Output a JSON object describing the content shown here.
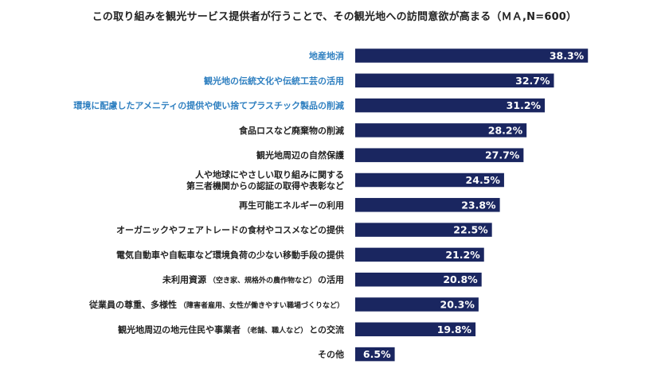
{
  "chart_data": {
    "type": "bar",
    "orientation": "horizontal",
    "title": "この取り組みを観光サービス提供者が行うことで、その観光地への訪問意欲が高まる（ＭＡ,N=600）",
    "categories": [
      {
        "label": "地産地消",
        "highlight": true
      },
      {
        "label": "観光地の伝統文化や伝統工芸の活用",
        "highlight": true
      },
      {
        "label": "環境に配慮したアメニティの提供や使い捨てプラスチック製品の削減",
        "highlight": true
      },
      {
        "label": "食品ロスなど廃棄物の削減"
      },
      {
        "label": "観光地周辺の自然保護"
      },
      {
        "lines": [
          "人や地球にやさしい取り組みに関する",
          "第三者機関からの認証の取得や表彰など"
        ]
      },
      {
        "label": "再生可能エネルギーの利用"
      },
      {
        "label": "オーガニックやフェアトレードの食材やコスメなどの提供"
      },
      {
        "label": "電気自動車や自転車など環境負荷の少ない移動手段の提供"
      },
      {
        "label": "未利用資源",
        "note": "（空き家、規格外の農作物など）",
        "suffix": "の活用"
      },
      {
        "label": "従業員の尊重、多様性",
        "note": "（障害者雇用、女性が働きやすい職場づくりなど）",
        "suffix": ""
      },
      {
        "label": "観光地周辺の地元住民や事業者",
        "note": "（老舗、職人など）",
        "suffix": "との交流"
      },
      {
        "label": "その他"
      }
    ],
    "values": [
      38.3,
      32.7,
      31.2,
      28.2,
      27.7,
      24.5,
      23.8,
      22.5,
      21.2,
      20.8,
      20.3,
      19.8,
      6.5
    ],
    "value_labels": [
      "38.3%",
      "32.7%",
      "31.2%",
      "28.2%",
      "27.7%",
      "24.5%",
      "23.8%",
      "22.5%",
      "21.2%",
      "20.8%",
      "20.3%",
      "19.8%",
      "6.5%"
    ],
    "colors": {
      "bar": "#1a2660",
      "label": "#222222",
      "highlight_label": "#2e7fc0",
      "value": "#ffffff"
    }
  }
}
